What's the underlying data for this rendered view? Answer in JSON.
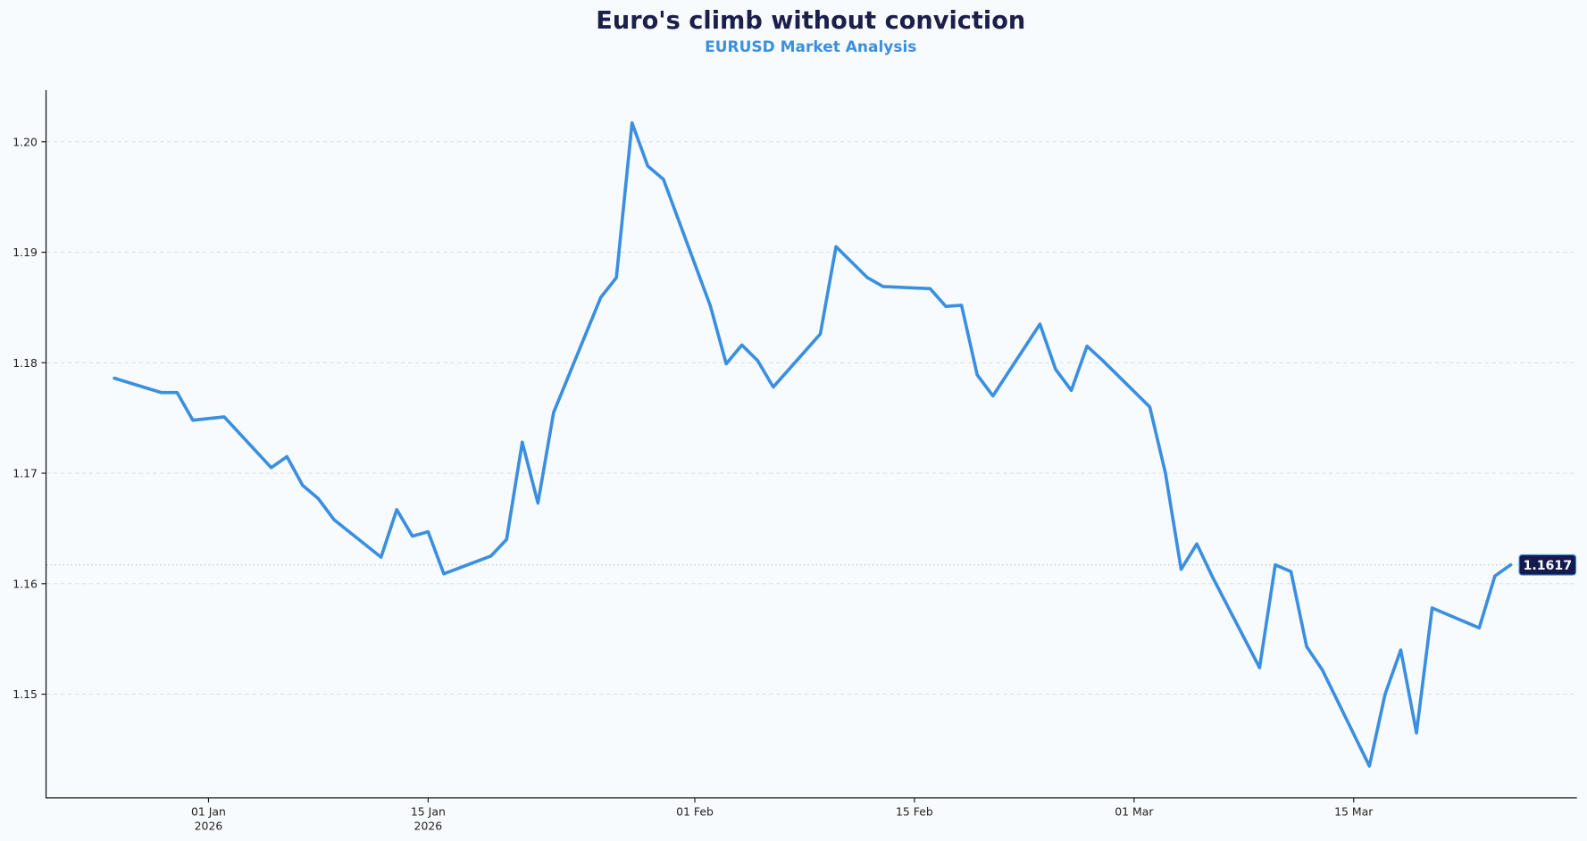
{
  "header": {
    "title": "Euro's climb without conviction",
    "subtitle": "EURUSD Market Analysis"
  },
  "colors": {
    "background": "#f8fbfd",
    "title": "#1c1f4a",
    "subtitle": "#3a8fe0",
    "line": "#3a8fe0",
    "badge_bg": "#141b4f",
    "badge_border": "#3a8fe0",
    "badge_text": "#ffffff"
  },
  "last_value_label": "1.1617",
  "chart_data": {
    "type": "line",
    "title": "Euro's climb without conviction",
    "subtitle": "EURUSD Market Analysis",
    "xlabel": "",
    "ylabel": "",
    "ylim": [
      1.1405,
      1.2047
    ],
    "yticks": [
      "1.15",
      "1.16",
      "1.17",
      "1.18",
      "1.19",
      "1.20"
    ],
    "xticks": [
      {
        "date": "2026-01-01",
        "label": "01 Jan",
        "sublabel": "2026"
      },
      {
        "date": "2026-01-15",
        "label": "15 Jan",
        "sublabel": "2026"
      },
      {
        "date": "2026-02-01",
        "label": "01 Feb",
        "sublabel": ""
      },
      {
        "date": "2026-02-15",
        "label": "15 Feb",
        "sublabel": ""
      },
      {
        "date": "2026-03-01",
        "label": "01 Mar",
        "sublabel": ""
      },
      {
        "date": "2026-03-15",
        "label": "15 Mar",
        "sublabel": ""
      }
    ],
    "grid": "horizontal dashed",
    "last_value_annotation": 1.1617,
    "series": [
      {
        "name": "EURUSD",
        "x": [
          "2025-12-26",
          "2025-12-29",
          "2025-12-30",
          "2025-12-31",
          "2026-01-02",
          "2026-01-05",
          "2026-01-06",
          "2026-01-07",
          "2026-01-08",
          "2026-01-09",
          "2026-01-12",
          "2026-01-13",
          "2026-01-14",
          "2026-01-15",
          "2026-01-16",
          "2026-01-19",
          "2026-01-20",
          "2026-01-21",
          "2026-01-22",
          "2026-01-23",
          "2026-01-26",
          "2026-01-27",
          "2026-01-28",
          "2026-01-29",
          "2026-01-30",
          "2026-02-02",
          "2026-02-03",
          "2026-02-04",
          "2026-02-05",
          "2026-02-06",
          "2026-02-09",
          "2026-02-10",
          "2026-02-11",
          "2026-02-12",
          "2026-02-13",
          "2026-02-16",
          "2026-02-17",
          "2026-02-18",
          "2026-02-19",
          "2026-02-20",
          "2026-02-23",
          "2026-02-24",
          "2026-02-25",
          "2026-02-26",
          "2026-02-27",
          "2026-03-02",
          "2026-03-03",
          "2026-03-04",
          "2026-03-05",
          "2026-03-06",
          "2026-03-09",
          "2026-03-10",
          "2026-03-11",
          "2026-03-12",
          "2026-03-13",
          "2026-03-16",
          "2026-03-17",
          "2026-03-18",
          "2026-03-19",
          "2026-03-20",
          "2026-03-23",
          "2026-03-24",
          "2026-03-25"
        ],
        "values": [
          1.1786,
          1.1773,
          1.1773,
          1.1748,
          1.1751,
          1.1705,
          1.1715,
          1.1689,
          1.1677,
          1.1658,
          1.1624,
          1.1667,
          1.1643,
          1.1647,
          1.1609,
          1.1625,
          1.164,
          1.1728,
          1.1673,
          1.1755,
          1.1859,
          1.1877,
          1.2017,
          1.1978,
          1.1966,
          1.1851,
          1.1799,
          1.1816,
          1.1802,
          1.1778,
          1.1826,
          1.1905,
          1.1891,
          1.1877,
          1.1869,
          1.1867,
          1.1851,
          1.1852,
          1.1789,
          1.177,
          1.1835,
          1.1794,
          1.1775,
          1.1815,
          1.1802,
          1.176,
          1.17,
          1.1613,
          1.1636,
          1.1606,
          1.1524,
          1.1617,
          1.1611,
          1.1543,
          1.1522,
          1.1435,
          1.15,
          1.154,
          1.1465,
          1.1578,
          1.156,
          1.1607,
          1.1617
        ]
      }
    ]
  }
}
